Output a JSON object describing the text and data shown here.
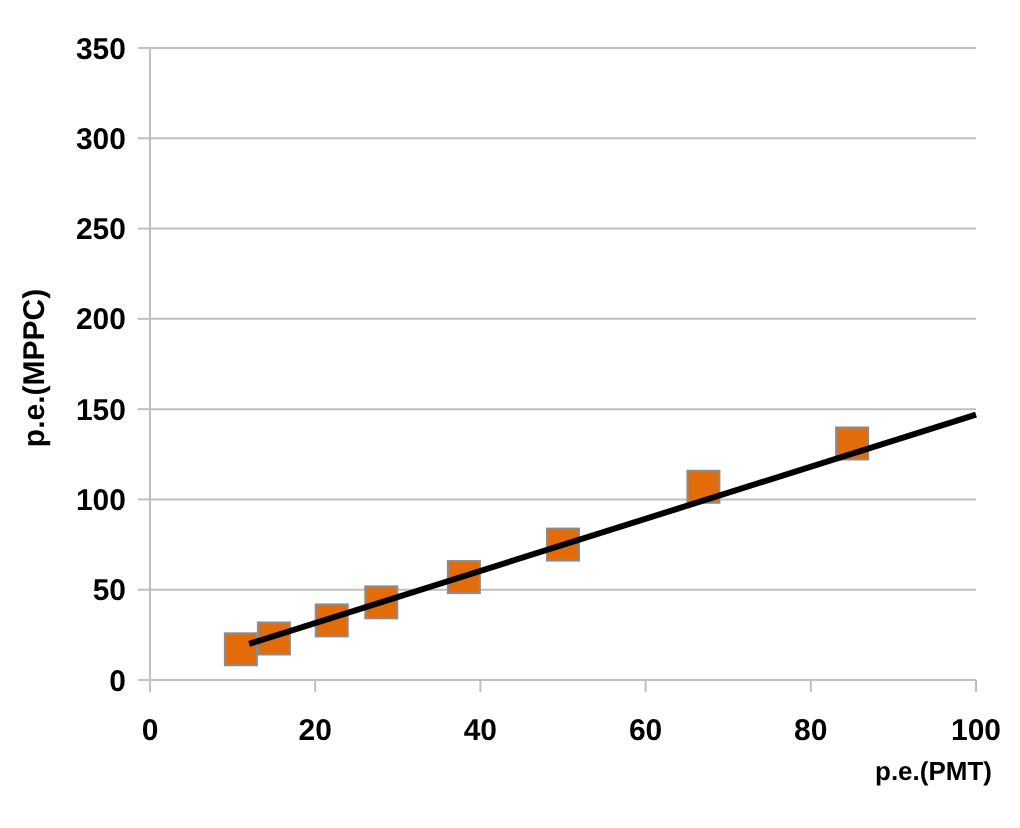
{
  "chart_data": {
    "type": "scatter",
    "xlabel": "p.e.(PMT)",
    "ylabel": "p.e.(MPPC)",
    "xlim": [
      0,
      100
    ],
    "ylim": [
      0,
      350
    ],
    "xticks": [
      0,
      20,
      40,
      60,
      80,
      100
    ],
    "yticks": [
      0,
      50,
      100,
      150,
      200,
      250,
      300,
      350
    ],
    "grid": "y",
    "marker": "square",
    "series": [
      {
        "color": "#e36c0a",
        "x": [
          11,
          15,
          22,
          28,
          38,
          50,
          67,
          85
        ],
        "values": [
          17,
          23,
          33,
          43,
          57,
          75,
          107,
          131
        ]
      },
      {
        "type": "line",
        "color": "#000000",
        "x": [
          12,
          100
        ],
        "values": [
          20,
          147
        ],
        "marker": "none"
      }
    ]
  }
}
